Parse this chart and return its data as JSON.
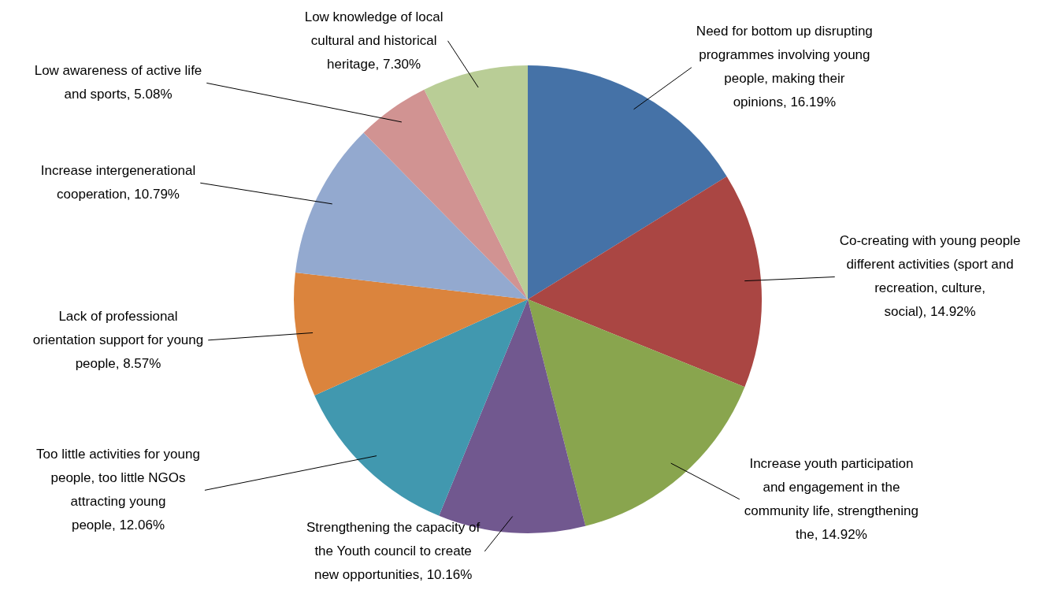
{
  "chart_data": {
    "type": "pie",
    "categories": [
      "Need for bottom up disrupting programmes involving young people, making their opinions",
      "Co-creating with young people different activities (sport and recreation, culture, social)",
      "Increase youth participation and engagement in the community life, strengthening the",
      "Strengthening the capacity of the Youth council to create new opportunities",
      "Too little activities for young people, too little NGOs attracting young people",
      "Lack of professional orientation support for young people",
      "Increase intergenerational cooperation",
      "Low awareness of active life and sports",
      "Low knowledge of local cultural and historical heritage"
    ],
    "values": [
      16.19,
      14.92,
      14.92,
      10.16,
      12.06,
      8.57,
      10.79,
      5.08,
      7.3
    ],
    "value_labels": [
      "16.19%",
      "14.92%",
      "14.92%",
      "10.16%",
      "12.06%",
      "8.57%",
      "10.79%",
      "5.08%",
      "7.30%"
    ],
    "colors": [
      "#4572a7",
      "#aa4643",
      "#89a54e",
      "#71588f",
      "#4198af",
      "#db843d",
      "#93a9cf",
      "#d19392",
      "#b9cd96"
    ],
    "legend": false
  }
}
